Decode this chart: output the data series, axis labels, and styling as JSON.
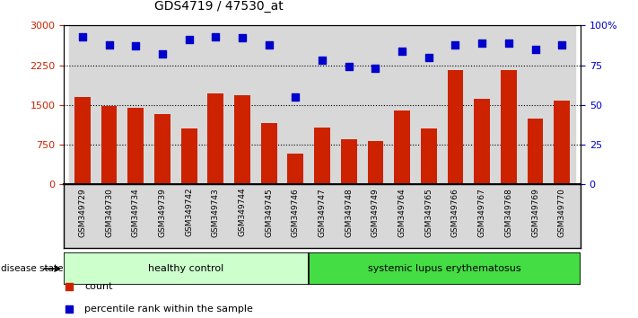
{
  "title": "GDS4719 / 47530_at",
  "samples": [
    "GSM349729",
    "GSM349730",
    "GSM349734",
    "GSM349739",
    "GSM349742",
    "GSM349743",
    "GSM349744",
    "GSM349745",
    "GSM349746",
    "GSM349747",
    "GSM349748",
    "GSM349749",
    "GSM349764",
    "GSM349765",
    "GSM349766",
    "GSM349767",
    "GSM349768",
    "GSM349769",
    "GSM349770"
  ],
  "counts": [
    1650,
    1480,
    1450,
    1330,
    1050,
    1720,
    1690,
    1150,
    580,
    1080,
    850,
    820,
    1400,
    1050,
    2150,
    1620,
    2150,
    1250,
    1590
  ],
  "percentiles": [
    93,
    88,
    87,
    82,
    91,
    93,
    92,
    88,
    55,
    78,
    74,
    73,
    84,
    80,
    88,
    89,
    89,
    85,
    88
  ],
  "healthy_count": 9,
  "bar_color": "#cc2200",
  "dot_color": "#0000cc",
  "healthy_color_light": "#ccffcc",
  "lupus_color": "#44dd44",
  "background_color": "#ffffff",
  "ylim_left": [
    0,
    3000
  ],
  "ylim_right": [
    0,
    100
  ],
  "yticks_left": [
    0,
    750,
    1500,
    2250,
    3000
  ],
  "yticks_right": [
    0,
    25,
    50,
    75,
    100
  ],
  "ytick_labels_right": [
    "0",
    "25",
    "50",
    "75",
    "100%"
  ],
  "grid_values": [
    750,
    1500,
    2250
  ],
  "legend_count_label": "count",
  "legend_pct_label": "percentile rank within the sample",
  "disease_state_label": "disease state",
  "healthy_label": "healthy control",
  "lupus_label": "systemic lupus erythematosus",
  "col_bg_color": "#d8d8d8",
  "plot_bg": "#ffffff"
}
